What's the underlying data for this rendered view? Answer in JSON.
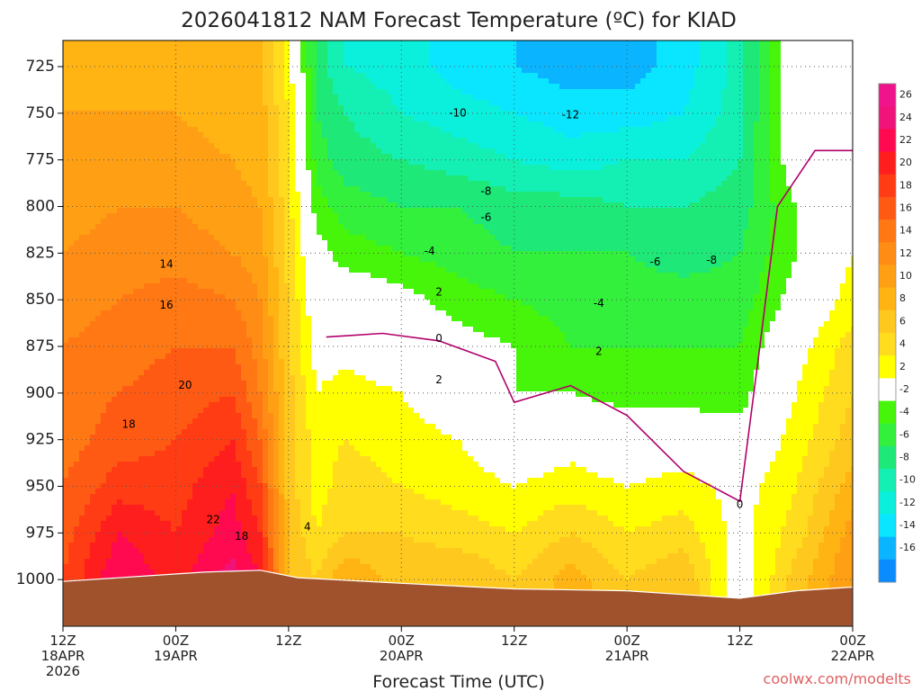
{
  "chart_data": {
    "type": "heatmap",
    "title": "2026041812 NAM Forecast Temperature (ºC) for KIAD",
    "xlabel": "Forecast Time (UTC)",
    "ylabel": "",
    "credit": "coolwx.com/modelts",
    "y_scale": "linear-inverted",
    "y_unit": "hPa",
    "ylim": [
      1025,
      711
    ],
    "y_ticks": [
      725,
      750,
      775,
      800,
      825,
      850,
      875,
      900,
      925,
      950,
      975,
      1000
    ],
    "xlim": [
      "2026-04-18T12:00Z",
      "2026-04-22T00:00Z"
    ],
    "x_ticks": [
      {
        "time": "2026-04-18T12:00Z",
        "line1": "12Z",
        "line2": "18APR",
        "line3": "2026"
      },
      {
        "time": "2026-04-19T00:00Z",
        "line1": "00Z",
        "line2": "19APR",
        "line3": ""
      },
      {
        "time": "2026-04-19T12:00Z",
        "line1": "12Z",
        "line2": "",
        "line3": ""
      },
      {
        "time": "2026-04-20T00:00Z",
        "line1": "00Z",
        "line2": "20APR",
        "line3": ""
      },
      {
        "time": "2026-04-20T12:00Z",
        "line1": "12Z",
        "line2": "",
        "line3": ""
      },
      {
        "time": "2026-04-21T00:00Z",
        "line1": "00Z",
        "line2": "21APR",
        "line3": ""
      },
      {
        "time": "2026-04-21T12:00Z",
        "line1": "12Z",
        "line2": "",
        "line3": ""
      },
      {
        "time": "2026-04-22T00:00Z",
        "line1": "00Z",
        "line2": "22APR",
        "line3": ""
      }
    ],
    "grid": true,
    "legend": "right",
    "colorbar": {
      "bins": [
        {
          "from": 26,
          "to": 28,
          "color": "#f0148c"
        },
        {
          "from": 24,
          "to": 26,
          "color": "#f0147a"
        },
        {
          "from": 22,
          "to": 24,
          "color": "#ff0a50"
        },
        {
          "from": 20,
          "to": 22,
          "color": "#ff1e1e"
        },
        {
          "from": 18,
          "to": 20,
          "color": "#ff3c14"
        },
        {
          "from": 16,
          "to": 18,
          "color": "#ff5a14"
        },
        {
          "from": 14,
          "to": 16,
          "color": "#ff7814"
        },
        {
          "from": 12,
          "to": 14,
          "color": "#ff8c14"
        },
        {
          "from": 10,
          "to": 12,
          "color": "#ffa014"
        },
        {
          "from": 8,
          "to": 10,
          "color": "#ffb414"
        },
        {
          "from": 6,
          "to": 8,
          "color": "#ffc81e"
        },
        {
          "from": 4,
          "to": 6,
          "color": "#ffdc1e"
        },
        {
          "from": 2,
          "to": 4,
          "color": "#ffff00"
        },
        {
          "from": -2,
          "to": 2,
          "color": "#ffffff"
        },
        {
          "from": -4,
          "to": -2,
          "color": "#46f50a"
        },
        {
          "from": -6,
          "to": -4,
          "color": "#32f03c"
        },
        {
          "from": -8,
          "to": -6,
          "color": "#1ee878"
        },
        {
          "from": -10,
          "to": -8,
          "color": "#14f0b4"
        },
        {
          "from": -12,
          "to": -10,
          "color": "#0af0dc"
        },
        {
          "from": -14,
          "to": -12,
          "color": "#0ae6ff"
        },
        {
          "from": -16,
          "to": -14,
          "color": "#0ab4ff"
        },
        {
          "from": -18,
          "to": -16,
          "color": "#0a8cff"
        }
      ],
      "labels": [
        26,
        24,
        22,
        20,
        18,
        16,
        14,
        12,
        10,
        8,
        6,
        4,
        2,
        -2,
        -4,
        -6,
        -8,
        -10,
        -12,
        -14,
        -16
      ]
    },
    "contour_labels": [
      {
        "text": "-10",
        "time": "2026-04-20T06:00Z",
        "p": 750
      },
      {
        "text": "-12",
        "time": "2026-04-20T18:00Z",
        "p": 751
      },
      {
        "text": "-8",
        "time": "2026-04-20T09:00Z",
        "p": 792
      },
      {
        "text": "-6",
        "time": "2026-04-20T09:00Z",
        "p": 806
      },
      {
        "text": "-4",
        "time": "2026-04-20T03:00Z",
        "p": 824
      },
      {
        "text": "-6",
        "time": "2026-04-21T03:00Z",
        "p": 830
      },
      {
        "text": "-8",
        "time": "2026-04-21T09:00Z",
        "p": 829
      },
      {
        "text": "2",
        "time": "2026-04-20T04:00Z",
        "p": 846
      },
      {
        "text": "-4",
        "time": "2026-04-20T21:00Z",
        "p": 852
      },
      {
        "text": "0",
        "time": "2026-04-20T04:00Z",
        "p": 871
      },
      {
        "text": "2",
        "time": "2026-04-20T21:00Z",
        "p": 878
      },
      {
        "text": "2",
        "time": "2026-04-20T04:00Z",
        "p": 893
      },
      {
        "text": "14",
        "time": "2026-04-18T23:00Z",
        "p": 831
      },
      {
        "text": "16",
        "time": "2026-04-18T23:00Z",
        "p": 853
      },
      {
        "text": "20",
        "time": "2026-04-19T01:00Z",
        "p": 896
      },
      {
        "text": "18",
        "time": "2026-04-18T19:00Z",
        "p": 917
      },
      {
        "text": "22",
        "time": "2026-04-19T04:00Z",
        "p": 968
      },
      {
        "text": "18",
        "time": "2026-04-19T07:00Z",
        "p": 977
      },
      {
        "text": "4",
        "time": "2026-04-19T14:00Z",
        "p": 972
      },
      {
        "text": "0",
        "time": "2026-04-21T12:00Z",
        "p": 960
      }
    ],
    "series": [
      {
        "name": "",
        "color": "#b1006c",
        "values": [
          {
            "time": "2026-04-19T16:00Z",
            "p": 870
          },
          {
            "time": "2026-04-19T22:00Z",
            "p": 868
          },
          {
            "time": "2026-04-20T04:00Z",
            "p": 872
          },
          {
            "time": "2026-04-20T10:00Z",
            "p": 883
          },
          {
            "time": "2026-04-20T12:00Z",
            "p": 905
          },
          {
            "time": "2026-04-20T18:00Z",
            "p": 896
          },
          {
            "time": "2026-04-21T00:00Z",
            "p": 912
          },
          {
            "time": "2026-04-21T06:00Z",
            "p": 942
          },
          {
            "time": "2026-04-21T12:00Z",
            "p": 958
          },
          {
            "time": "2026-04-21T14:00Z",
            "p": 880
          },
          {
            "time": "2026-04-21T16:00Z",
            "p": 800
          },
          {
            "time": "2026-04-21T20:00Z",
            "p": 770
          },
          {
            "time": "2026-04-22T00:00Z",
            "p": 770
          }
        ]
      }
    ],
    "terrain": {
      "color": "#a0522d",
      "values": [
        {
          "time": "2026-04-18T12:00Z",
          "p": 1001
        },
        {
          "time": "2026-04-18T21:00Z",
          "p": 998
        },
        {
          "time": "2026-04-19T03:00Z",
          "p": 996
        },
        {
          "time": "2026-04-19T09:00Z",
          "p": 995
        },
        {
          "time": "2026-04-19T13:00Z",
          "p": 999
        },
        {
          "time": "2026-04-20T00:00Z",
          "p": 1002
        },
        {
          "time": "2026-04-20T12:00Z",
          "p": 1005
        },
        {
          "time": "2026-04-21T00:00Z",
          "p": 1006
        },
        {
          "time": "2026-04-21T06:00Z",
          "p": 1008
        },
        {
          "time": "2026-04-21T12:00Z",
          "p": 1010
        },
        {
          "time": "2026-04-21T18:00Z",
          "p": 1006
        },
        {
          "time": "2026-04-22T00:00Z",
          "p": 1004
        }
      ]
    },
    "field": {
      "times": [
        "2026-04-18T12:00Z",
        "2026-04-18T18:00Z",
        "2026-04-19T00:00Z",
        "2026-04-19T06:00Z",
        "2026-04-19T09:00Z",
        "2026-04-19T12:00Z",
        "2026-04-19T15:00Z",
        "2026-04-19T18:00Z",
        "2026-04-20T00:00Z",
        "2026-04-20T06:00Z",
        "2026-04-20T12:00Z",
        "2026-04-20T18:00Z",
        "2026-04-21T00:00Z",
        "2026-04-21T06:00Z",
        "2026-04-21T12:00Z",
        "2026-04-21T18:00Z",
        "2026-04-22T00:00Z"
      ],
      "levels": [
        1025,
        1000,
        975,
        950,
        925,
        900,
        875,
        850,
        825,
        800,
        775,
        750,
        725,
        711
      ],
      "values": [
        [
          18,
          24,
          21,
          25,
          22,
          8,
          6,
          10,
          7,
          8,
          6,
          9,
          6,
          8,
          0,
          7,
          12
        ],
        [
          18,
          24,
          21,
          25,
          22,
          8,
          6,
          10,
          7,
          8,
          6,
          9,
          6,
          8,
          0,
          7,
          12
        ],
        [
          17,
          22,
          20,
          23,
          20,
          8,
          4,
          6,
          6,
          5,
          4,
          6,
          4,
          5,
          1,
          5,
          11
        ],
        [
          16,
          19,
          19,
          22,
          18,
          7,
          3,
          5,
          4,
          3,
          2,
          3,
          2,
          3,
          1,
          4,
          9
        ],
        [
          15,
          17,
          18,
          20,
          16,
          7,
          3,
          4,
          3,
          2,
          0,
          1,
          0,
          0,
          -1,
          3,
          7
        ],
        [
          15,
          16,
          17,
          18,
          14,
          7,
          2,
          3,
          2,
          0,
          -2,
          -2,
          -3,
          -3,
          -3,
          2,
          6
        ],
        [
          14,
          15,
          16,
          16,
          13,
          6,
          1,
          1,
          0,
          -1,
          -2,
          -4,
          -4,
          -4,
          -4,
          1,
          5
        ],
        [
          13,
          14,
          15,
          14,
          12,
          6,
          0,
          0,
          -1,
          -3,
          -4,
          -5,
          -5,
          -5,
          -5,
          -1,
          3
        ],
        [
          12,
          13,
          13,
          12,
          11,
          5,
          -1,
          -3,
          -4,
          -5,
          -6,
          -6,
          -6,
          -7,
          -6,
          -2,
          2
        ],
        [
          11,
          12,
          12,
          11,
          10,
          5,
          -3,
          -5,
          -6,
          -6,
          -7,
          -7,
          -8,
          -8,
          -7,
          -2,
          1
        ],
        [
          11,
          11,
          11,
          10,
          9,
          4,
          -5,
          -7,
          -8,
          -9,
          -10,
          -11,
          -10,
          -10,
          -8,
          0,
          1
        ],
        [
          10,
          10,
          10,
          9,
          9,
          4,
          -6,
          -8,
          -10,
          -11,
          -12,
          -13,
          -13,
          -12,
          -9,
          1,
          1
        ],
        [
          9,
          9,
          9,
          9,
          8,
          3,
          -7,
          -10,
          -11,
          -13,
          -14,
          -15,
          -15,
          -13,
          -9,
          1,
          1
        ],
        [
          9,
          9,
          9,
          9,
          8,
          3,
          -7,
          -10,
          -11,
          -13,
          -14,
          -15,
          -15,
          -13,
          -9,
          1,
          1
        ]
      ]
    }
  }
}
